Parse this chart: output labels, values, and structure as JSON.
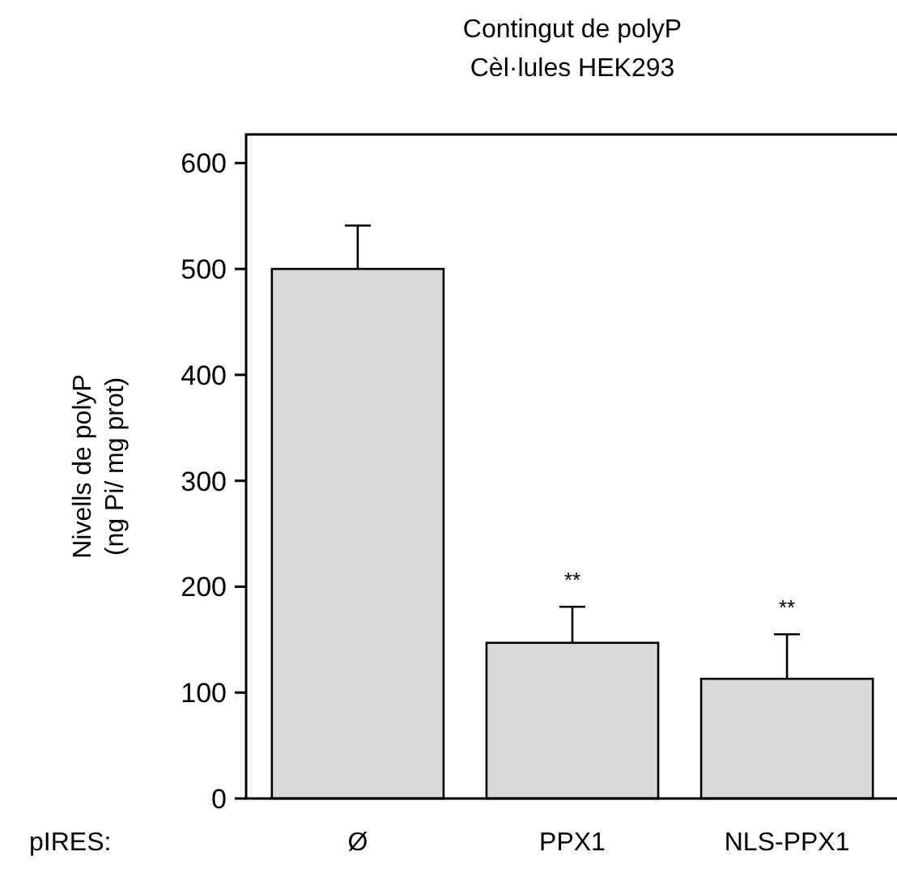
{
  "chart_data": {
    "type": "bar",
    "title": "Contingut de polyP",
    "subtitle": "Cèl·lules HEK293",
    "ylabel": "Nivells de polyP\n(ng Pi/ mg prot)",
    "categories": [
      "Ø",
      "PPX1",
      "NLS-PPX1"
    ],
    "values": [
      500,
      147,
      113
    ],
    "errors": [
      41,
      34,
      42
    ],
    "color": "#d9d9d9",
    "ylim": [
      0,
      627
    ],
    "yticks": [
      0,
      100,
      200,
      300,
      400,
      500,
      600
    ],
    "grid": false,
    "annotations": [
      "pIRES:",
      "**",
      "**"
    ]
  }
}
